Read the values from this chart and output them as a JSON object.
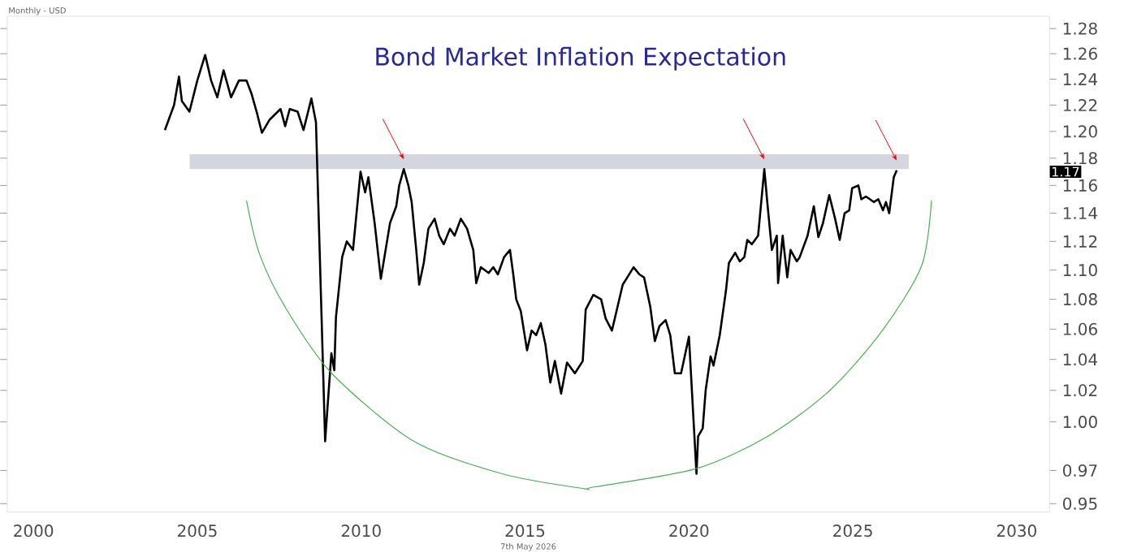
{
  "chart_data": {
    "type": "line",
    "title": "Bond Market Inflation Expectation",
    "log": "y",
    "xlim": [
      1999.2,
      2031.0
    ],
    "xticks": [
      2000,
      2005,
      2010,
      2015,
      2020,
      2025,
      2030
    ],
    "ylim": [
      0.945,
      1.29
    ],
    "yticks": [
      {
        "value": 0.95,
        "label": "0.95"
      },
      {
        "value": 0.97,
        "label": "0.97"
      },
      {
        "value": 1.0,
        "label": "1.00"
      },
      {
        "value": 1.02,
        "label": "1.02"
      },
      {
        "value": 1.04,
        "label": "1.04"
      },
      {
        "value": 1.06,
        "label": "1.06"
      },
      {
        "value": 1.08,
        "label": "1.08"
      },
      {
        "value": 1.1,
        "label": "1.10"
      },
      {
        "value": 1.12,
        "label": "1.12"
      },
      {
        "value": 1.14,
        "label": "1.14"
      },
      {
        "value": 1.16,
        "label": "1.16"
      },
      {
        "value": 1.18,
        "label": "1.18"
      },
      {
        "value": 1.2,
        "label": "1.20"
      },
      {
        "value": 1.22,
        "label": "1.22"
      },
      {
        "value": 1.24,
        "label": "1.24"
      },
      {
        "value": 1.26,
        "label": "1.26"
      },
      {
        "value": 1.28,
        "label": "1.28"
      }
    ],
    "bands": [
      {
        "axis": "y",
        "from": 1.172,
        "to": 1.183,
        "color": "#d3d6de"
      }
    ],
    "series": [
      {
        "color": "#000000",
        "x": [
          2004.01,
          2004.29,
          2004.44,
          2004.53,
          2004.76,
          2005.0,
          2005.24,
          2005.42,
          2005.61,
          2005.8,
          2006.03,
          2006.27,
          2006.5,
          2006.65,
          2006.83,
          2006.97,
          2007.21,
          2007.54,
          2007.68,
          2007.82,
          2008.06,
          2008.24,
          2008.48,
          2008.62,
          2008.9,
          2009.09,
          2009.18,
          2009.23,
          2009.42,
          2009.56,
          2009.75,
          2009.98,
          2010.12,
          2010.22,
          2010.41,
          2010.6,
          2010.88,
          2011.07,
          2011.16,
          2011.3,
          2011.44,
          2011.54,
          2011.68,
          2011.77,
          2011.91,
          2012.05,
          2012.24,
          2012.38,
          2012.52,
          2012.71,
          2012.85,
          2013.04,
          2013.23,
          2013.42,
          2013.51,
          2013.65,
          2013.89,
          2014.03,
          2014.17,
          2014.36,
          2014.54,
          2014.64,
          2014.73,
          2014.87,
          2015.06,
          2015.2,
          2015.34,
          2015.48,
          2015.62,
          2015.77,
          2015.91,
          2016.1,
          2016.28,
          2016.52,
          2016.76,
          2016.85,
          2017.08,
          2017.32,
          2017.46,
          2017.65,
          2017.79,
          2017.98,
          2018.12,
          2018.31,
          2018.49,
          2018.63,
          2018.82,
          2018.96,
          2019.1,
          2019.29,
          2019.43,
          2019.57,
          2019.76,
          2020.0,
          2020.09,
          2020.23,
          2020.28,
          2020.42,
          2020.51,
          2020.66,
          2020.75,
          2020.94,
          2021.13,
          2021.22,
          2021.41,
          2021.55,
          2021.69,
          2021.78,
          2021.92,
          2022.11,
          2022.3,
          2022.39,
          2022.53,
          2022.68,
          2022.72,
          2022.86,
          2023.0,
          2023.1,
          2023.29,
          2023.38,
          2023.62,
          2023.81,
          2023.95,
          2024.09,
          2024.28,
          2024.46,
          2024.6,
          2024.75,
          2024.89,
          2024.98,
          2025.17,
          2025.26,
          2025.4,
          2025.64,
          2025.78,
          2025.92,
          2026.01,
          2026.11,
          2026.25,
          2026.34
        ],
        "values": [
          1.201,
          1.22,
          1.242,
          1.223,
          1.215,
          1.239,
          1.259,
          1.239,
          1.226,
          1.247,
          1.226,
          1.239,
          1.239,
          1.229,
          1.213,
          1.199,
          1.209,
          1.217,
          1.204,
          1.217,
          1.215,
          1.201,
          1.225,
          1.207,
          0.988,
          1.044,
          1.033,
          1.068,
          1.109,
          1.12,
          1.114,
          1.17,
          1.155,
          1.166,
          1.133,
          1.094,
          1.133,
          1.145,
          1.16,
          1.172,
          1.16,
          1.148,
          1.114,
          1.09,
          1.105,
          1.129,
          1.136,
          1.124,
          1.118,
          1.129,
          1.124,
          1.136,
          1.129,
          1.114,
          1.091,
          1.102,
          1.098,
          1.102,
          1.097,
          1.109,
          1.114,
          1.097,
          1.08,
          1.072,
          1.046,
          1.059,
          1.056,
          1.064,
          1.05,
          1.025,
          1.039,
          1.018,
          1.038,
          1.031,
          1.039,
          1.073,
          1.083,
          1.08,
          1.067,
          1.059,
          1.072,
          1.09,
          1.095,
          1.102,
          1.097,
          1.095,
          1.075,
          1.052,
          1.062,
          1.066,
          1.056,
          1.031,
          1.031,
          1.055,
          1.02,
          0.968,
          0.991,
          0.996,
          1.02,
          1.042,
          1.036,
          1.056,
          1.086,
          1.105,
          1.112,
          1.106,
          1.109,
          1.121,
          1.118,
          1.124,
          1.172,
          1.148,
          1.114,
          1.124,
          1.091,
          1.124,
          1.095,
          1.114,
          1.106,
          1.109,
          1.124,
          1.145,
          1.123,
          1.133,
          1.153,
          1.136,
          1.121,
          1.14,
          1.142,
          1.158,
          1.16,
          1.15,
          1.152,
          1.148,
          1.15,
          1.142,
          1.148,
          1.14,
          1.166,
          1.171
        ]
      },
      {
        "color": "#4caf50",
        "x": [
          2006.5,
          2006.9,
          2007.7,
          2009.1,
          2011.6,
          2014.3,
          2016.8,
          2017.1,
          2020.2,
          2022.4,
          2024.3,
          2025.9,
          2027.1,
          2027.4
        ],
        "values": [
          1.149,
          1.111,
          1.074,
          1.031,
          0.988,
          0.968,
          0.959,
          0.96,
          0.971,
          0.991,
          1.02,
          1.059,
          1.103,
          1.149
        ]
      }
    ],
    "annotations": [
      "Monthly - USD",
      "7th May 2026",
      {
        "text": "1.17",
        "y": 1.17
      }
    ]
  }
}
